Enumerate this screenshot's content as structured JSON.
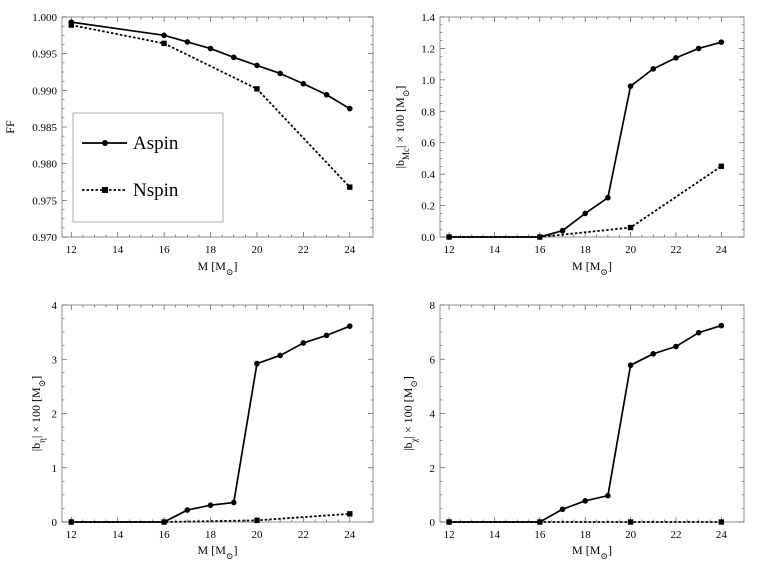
{
  "chart_data": [
    {
      "type": "line",
      "xlabel": "M [M_⊙]",
      "ylabel": "FF",
      "xlim": [
        11.6,
        25
      ],
      "ylim": [
        0.97,
        1.0
      ],
      "xticks": [
        "12",
        "14",
        "16",
        "18",
        "20",
        "22",
        "24"
      ],
      "yticks": [
        "0.970",
        "0.975",
        "0.980",
        "0.985",
        "0.990",
        "0.995",
        "1.000"
      ],
      "legend": {
        "position": "lower-left",
        "entries": [
          "Aspin",
          "Nspin"
        ]
      },
      "series": [
        {
          "name": "Aspin",
          "style": "solid",
          "marker": "circle",
          "x": [
            12,
            16,
            17,
            18,
            19,
            20,
            21,
            22,
            23,
            24
          ],
          "y": [
            0.9993,
            0.9975,
            0.9966,
            0.9957,
            0.9945,
            0.9934,
            0.9923,
            0.9909,
            0.9894,
            0.9875
          ]
        },
        {
          "name": "Nspin",
          "style": "dashed",
          "marker": "square",
          "x": [
            12,
            16,
            20,
            24
          ],
          "y": [
            0.9989,
            0.9964,
            0.9902,
            0.9768
          ]
        }
      ]
    },
    {
      "type": "line",
      "xlabel": "M [M_⊙]",
      "ylabel": "|b_Mc| × 100 [M_⊙]",
      "xlim": [
        11.6,
        25
      ],
      "ylim": [
        0.0,
        1.4
      ],
      "xticks": [
        "12",
        "14",
        "16",
        "18",
        "20",
        "22",
        "24"
      ],
      "yticks": [
        "0.0",
        "0.2",
        "0.4",
        "0.6",
        "0.8",
        "1.0",
        "1.2",
        "1.4"
      ],
      "series": [
        {
          "name": "Aspin",
          "style": "solid",
          "marker": "circle",
          "x": [
            12,
            16,
            17,
            18,
            19,
            20,
            21,
            22,
            23,
            24
          ],
          "y": [
            0.0,
            0.0,
            0.04,
            0.15,
            0.25,
            0.96,
            1.07,
            1.14,
            1.2,
            1.24
          ]
        },
        {
          "name": "Nspin",
          "style": "dashed",
          "marker": "square",
          "x": [
            12,
            16,
            20,
            24
          ],
          "y": [
            0.0,
            0.0,
            0.06,
            0.45
          ]
        }
      ]
    },
    {
      "type": "line",
      "xlabel": "M [M_⊙]",
      "ylabel": "|b_η| × 100 [M_⊙]",
      "xlim": [
        11.6,
        25
      ],
      "ylim": [
        0,
        4
      ],
      "xticks": [
        "12",
        "14",
        "16",
        "18",
        "20",
        "22",
        "24"
      ],
      "yticks": [
        "0",
        "1",
        "2",
        "3",
        "4"
      ],
      "series": [
        {
          "name": "Aspin",
          "style": "solid",
          "marker": "circle",
          "x": [
            12,
            16,
            17,
            18,
            19,
            20,
            21,
            22,
            23,
            24
          ],
          "y": [
            0.0,
            0.0,
            0.22,
            0.31,
            0.36,
            2.92,
            3.07,
            3.3,
            3.44,
            3.61
          ]
        },
        {
          "name": "Nspin",
          "style": "dashed",
          "marker": "square",
          "x": [
            12,
            16,
            20,
            24
          ],
          "y": [
            0.0,
            0.0,
            0.03,
            0.15
          ]
        }
      ]
    },
    {
      "type": "line",
      "xlabel": "M [M_⊙]",
      "ylabel": "|b_χ| × 100 [M_⊙]",
      "xlim": [
        11.6,
        25
      ],
      "ylim": [
        0,
        8
      ],
      "xticks": [
        "12",
        "14",
        "16",
        "18",
        "20",
        "22",
        "24"
      ],
      "yticks": [
        "0",
        "2",
        "4",
        "6",
        "8"
      ],
      "series": [
        {
          "name": "Aspin",
          "style": "solid",
          "marker": "circle",
          "x": [
            12,
            16,
            17,
            18,
            19,
            20,
            21,
            22,
            23,
            24
          ],
          "y": [
            0.0,
            0.0,
            0.47,
            0.78,
            0.97,
            5.78,
            6.2,
            6.47,
            6.98,
            7.24
          ]
        },
        {
          "name": "Nspin",
          "style": "dashed",
          "marker": "square",
          "x": [
            12,
            16,
            20,
            24
          ],
          "y": [
            0.0,
            0.0,
            0.0,
            0.0
          ]
        }
      ]
    }
  ]
}
